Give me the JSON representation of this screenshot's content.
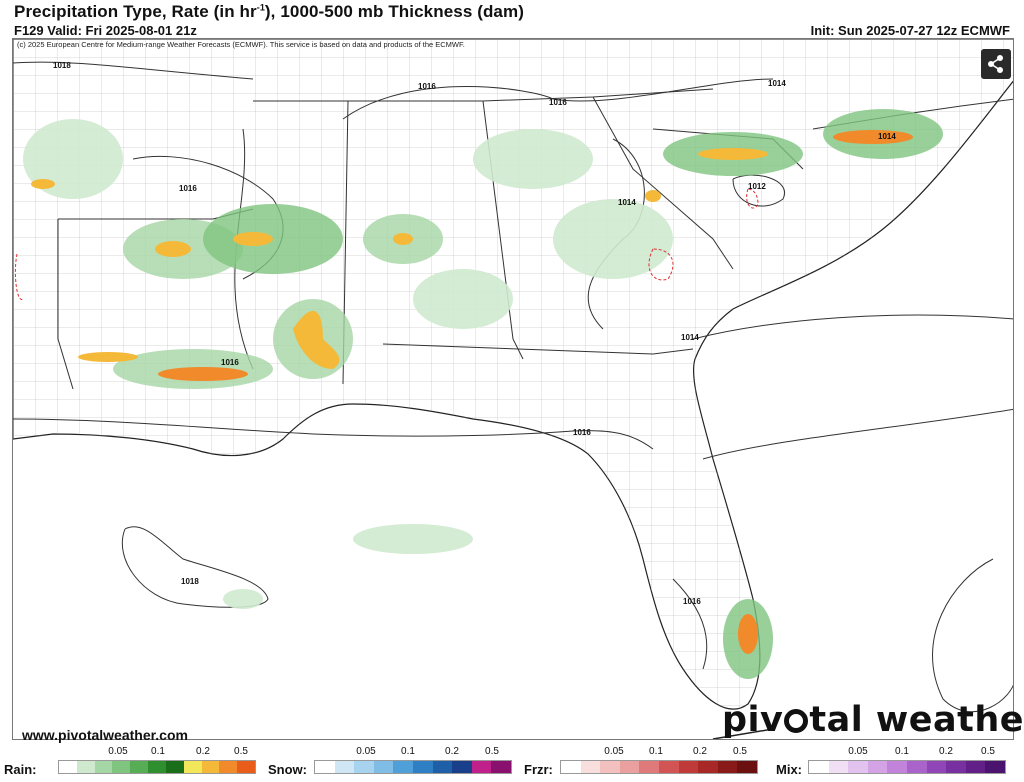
{
  "header": {
    "title_main": "Precipitation Type, Rate (in hr",
    "title_sup": "-1",
    "title_rest": "), 1000-500 mb Thickness (dam)",
    "valid": "F129 Valid: Fri 2025-08-01 21z",
    "init": "Init: Sun 2025-07-27 12z ECMWF"
  },
  "map": {
    "copyright": "(c) 2025 European Centre for Medium-range Weather Forecasts (ECMWF). This service is based on data and products of the ECMWF.",
    "isobar_labels": [
      "1018",
      "1016",
      "1016",
      "1016",
      "1014",
      "1012",
      "1014",
      "1014",
      "1016",
      "1016",
      "1016",
      "1018",
      "1014"
    ],
    "share_icon": "share-icon"
  },
  "footer": {
    "website": "www.pivotalweather.com",
    "logo_text_a": "piv",
    "logo_text_b": "tal weather"
  },
  "legends": [
    {
      "label": "Rain:",
      "ticks": [
        "0.05",
        "0.1",
        "0.2",
        "0.5"
      ],
      "colors": [
        "#ffffff",
        "#cfe9cf",
        "#a5d6a5",
        "#7fc47f",
        "#56ad56",
        "#2f8f2f",
        "#1a6e1a",
        "#f2e65a",
        "#f5b93a",
        "#f08a2a",
        "#ea5c1a"
      ]
    },
    {
      "label": "Snow:",
      "ticks": [
        "0.05",
        "0.1",
        "0.2",
        "0.5"
      ],
      "colors": [
        "#ffffff",
        "#cfe6f5",
        "#a8d3ef",
        "#7fbde6",
        "#4f9fd8",
        "#2f7fc4",
        "#1e5fa8",
        "#1a3f8a",
        "#c0208a",
        "#8a1070"
      ]
    },
    {
      "label": "Frzr:",
      "ticks": [
        "0.05",
        "0.1",
        "0.2",
        "0.5"
      ],
      "colors": [
        "#ffffff",
        "#f9dede",
        "#f3c0c0",
        "#eba0a0",
        "#e07a7a",
        "#d35454",
        "#c03a3a",
        "#a82828",
        "#8a1a1a",
        "#6a1010"
      ]
    },
    {
      "label": "Mix:",
      "ticks": [
        "0.05",
        "0.1",
        "0.2",
        "0.5"
      ],
      "colors": [
        "#ffffff",
        "#f0dff5",
        "#e2c2ee",
        "#d3a3e5",
        "#c184da",
        "#aa63ca",
        "#9046b6",
        "#7830a0",
        "#621f88",
        "#4a1370"
      ]
    }
  ]
}
